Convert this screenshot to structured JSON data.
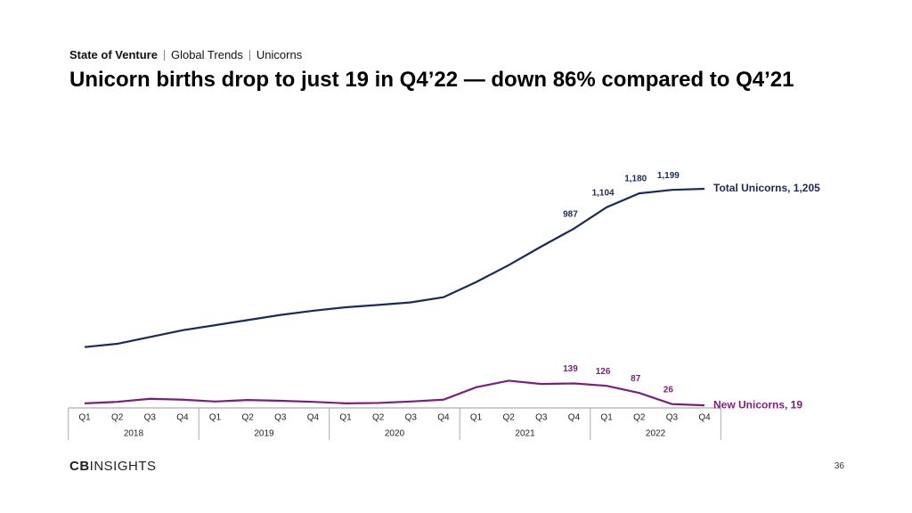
{
  "header": {
    "breadcrumb": [
      "State of Venture",
      "Global Trends",
      "Unicorns"
    ],
    "page_number": "36",
    "logo": [
      "CB",
      "INSIGHTS"
    ]
  },
  "chart_data": {
    "type": "line",
    "title": "Unicorn births drop to just 19 in Q4’22 — down 86% compared to Q4’21",
    "categories": [
      "Q1",
      "Q2",
      "Q3",
      "Q4",
      "Q1",
      "Q2",
      "Q3",
      "Q4",
      "Q1",
      "Q2",
      "Q3",
      "Q4",
      "Q1",
      "Q2",
      "Q3",
      "Q4",
      "Q1",
      "Q2",
      "Q3",
      "Q4"
    ],
    "years": [
      "2018",
      "2019",
      "2020",
      "2021",
      "2022"
    ],
    "ylim": [
      0,
      1500
    ],
    "series": [
      {
        "name": "Total Unicorns, 1,205",
        "color": "#1b2a56",
        "values": [
          338,
          356,
          393,
          430,
          458,
          486,
          514,
          537,
          556,
          569,
          583,
          611,
          694,
          787,
          889,
          987,
          1104,
          1180,
          1199,
          1205
        ],
        "value_labels": [
          null,
          null,
          null,
          null,
          null,
          null,
          null,
          null,
          null,
          null,
          null,
          null,
          null,
          null,
          null,
          "987",
          "1,104",
          "1,180",
          "1,199",
          null
        ]
      },
      {
        "name": "New Unicorns, 19",
        "color": "#7b1f7a",
        "values": [
          30,
          38,
          55,
          50,
          40,
          48,
          44,
          38,
          30,
          32,
          40,
          50,
          118,
          154,
          136,
          139,
          126,
          87,
          26,
          19
        ],
        "value_labels": [
          null,
          null,
          null,
          null,
          null,
          null,
          null,
          null,
          null,
          null,
          null,
          null,
          null,
          null,
          null,
          "139",
          "126",
          "87",
          "26",
          null
        ]
      }
    ]
  }
}
